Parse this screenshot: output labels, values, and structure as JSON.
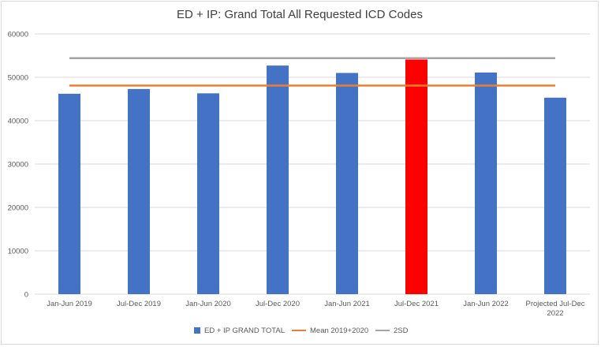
{
  "colors": {
    "bar": "#4472c4",
    "highlight_bar": "#ff0000",
    "mean_line": "#ed7d31",
    "sd_line": "#a5a5a5",
    "grid": "#d9d9d9"
  },
  "chart_data": {
    "type": "bar",
    "title": "ED + IP: Grand Total All Requested ICD Codes",
    "categories": [
      "Jan-Jun 2019",
      "Jul-Dec 2019",
      "Jan-Jun 2020",
      "Jul-Dec 2020",
      "Jan-Jun 2021",
      "Jul-Dec 2021",
      "Jan-Jun 2022",
      "Projected Jul-Dec 2022"
    ],
    "series": [
      {
        "name": "ED + IP GRAND TOTAL",
        "type": "bar",
        "values": [
          46200,
          47300,
          46300,
          52700,
          51000,
          54100,
          51100,
          45300
        ],
        "highlight_index": 5
      },
      {
        "name": "Mean 2019+2020",
        "type": "line",
        "values": [
          48100,
          48100,
          48100,
          48100,
          48100,
          48100,
          48100,
          48100
        ]
      },
      {
        "name": "2SD",
        "type": "line",
        "values": [
          54400,
          54400,
          54400,
          54400,
          54400,
          54400,
          54400,
          54400
        ]
      }
    ],
    "y_ticks": [
      "0",
      "10000",
      "20000",
      "30000",
      "40000",
      "50000",
      "60000"
    ],
    "ylim": [
      0,
      60000
    ],
    "grid": true,
    "legend_position": "bottom"
  }
}
